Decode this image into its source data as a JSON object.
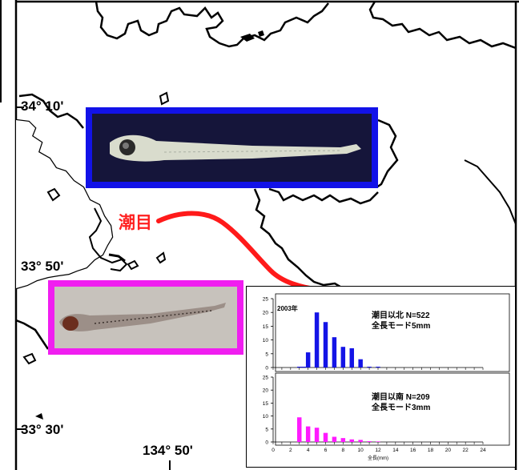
{
  "map": {
    "lat_labels": [
      "34° 10'",
      "33° 50'",
      "33° 30'"
    ],
    "lon_label": "134° 50'",
    "tidal_front_label": "潮目",
    "colors": {
      "tidal_front": "#ff1a1a",
      "north_frame": "#1212e8",
      "south_frame": "#f01ef0",
      "coast": "#000000"
    }
  },
  "photos": {
    "north": {
      "content": "larval fish (north of front)"
    },
    "south": {
      "content": "larval fish (south of front)"
    }
  },
  "chart_data": [
    {
      "type": "bar",
      "year_label": "2003年",
      "caption_line1": "潮目以北  N=522",
      "caption_line2": "全長モード5mm",
      "color": "#1414e6",
      "x": [
        3,
        3.5,
        4,
        5,
        6,
        7,
        8,
        9,
        10,
        11,
        12
      ],
      "values": [
        0.3,
        0.3,
        5.5,
        20,
        16.5,
        11,
        7.5,
        7,
        3,
        0.3,
        0.3
      ],
      "ylim": [
        0,
        25
      ],
      "yticks": [
        0,
        5,
        10,
        15,
        20,
        25
      ],
      "xlim": [
        0,
        24
      ]
    },
    {
      "type": "bar",
      "caption_line1": "潮目以南    N=209",
      "caption_line2": "全長モード3mm",
      "color": "#ff1aff",
      "x": [
        3,
        4,
        5,
        6,
        7,
        8,
        9,
        10,
        11,
        12
      ],
      "values": [
        9.5,
        6,
        5.5,
        3.5,
        2,
        1.5,
        1,
        0.8,
        0.3,
        0.2
      ],
      "ylim": [
        0,
        25
      ],
      "yticks": [
        0,
        5,
        10,
        15,
        20,
        25
      ],
      "xlim": [
        0,
        24
      ],
      "xticks": [
        0,
        2,
        4,
        6,
        8,
        10,
        12,
        14,
        16,
        18,
        20,
        22,
        24
      ],
      "xlabel": "全長(mm)"
    }
  ]
}
